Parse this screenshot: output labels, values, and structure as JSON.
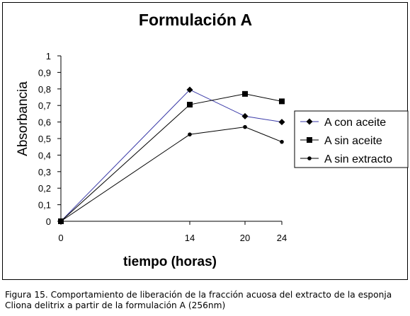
{
  "chart_data": {
    "type": "line",
    "title": "Formulación A",
    "xlabel": "tiempo (horas)",
    "ylabel": "Absorbancia",
    "categories": [
      "0",
      "14",
      "20",
      "24"
    ],
    "x": [
      0,
      14,
      20,
      24
    ],
    "ylim": [
      0,
      1
    ],
    "yticks": [
      "0",
      "0,1",
      "0,2",
      "0,3",
      "0,4",
      "0,5",
      "0,6",
      "0,7",
      "0,8",
      "0,9",
      "1"
    ],
    "grid": false,
    "legend_position": "right",
    "series": [
      {
        "name": "A con aceite",
        "values": [
          0,
          0.795,
          0.635,
          0.6
        ],
        "marker": "diamond",
        "color": "#3a3aa8"
      },
      {
        "name": "A sin aceite",
        "values": [
          0,
          0.705,
          0.77,
          0.725
        ],
        "marker": "square",
        "color": "#000000"
      },
      {
        "name": "A sin extracto",
        "values": [
          0,
          0.525,
          0.57,
          0.48
        ],
        "marker": "circle",
        "color": "#000000"
      }
    ]
  },
  "caption": "Figura 15. Comportamiento de liberación de la fracción acuosa del extracto de la esponja Cliona delitrix a partir de la formulación  A (256nm)"
}
